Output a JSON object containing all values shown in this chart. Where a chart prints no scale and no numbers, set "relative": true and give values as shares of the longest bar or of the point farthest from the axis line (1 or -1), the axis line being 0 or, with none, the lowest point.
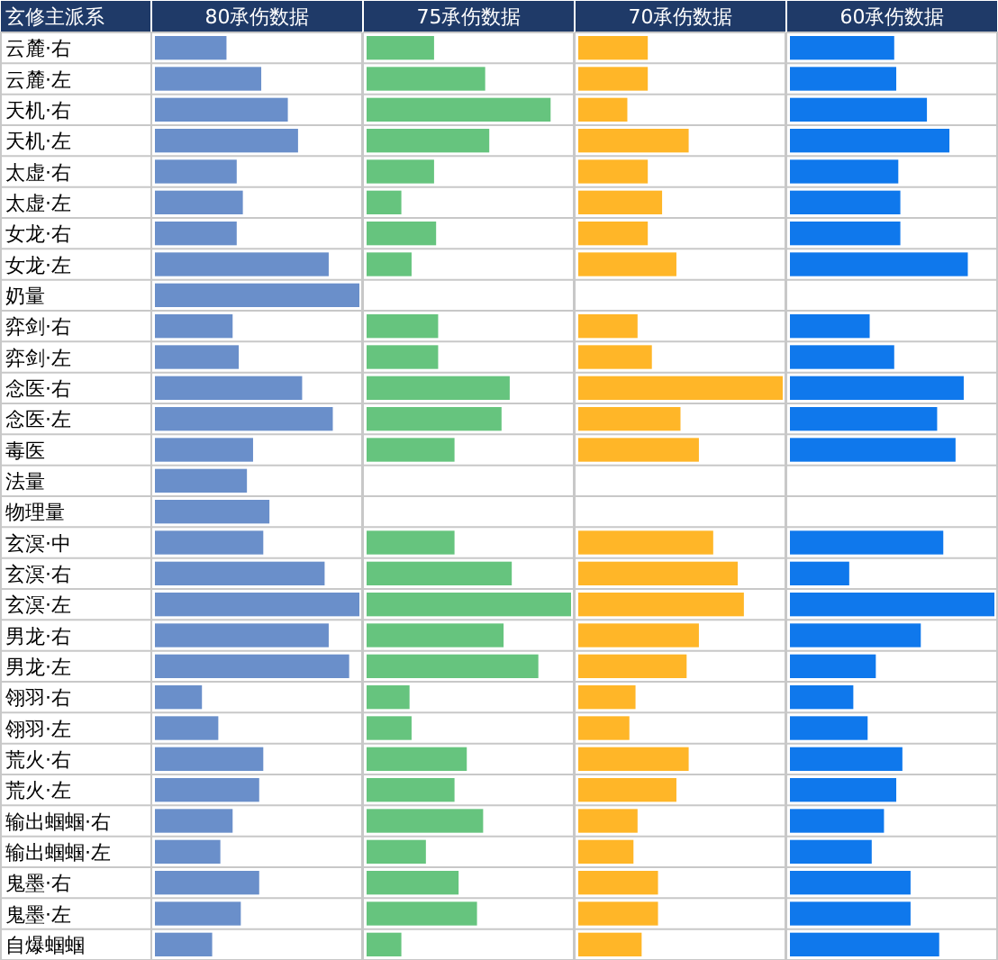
{
  "chart_data": [
    {
      "type": "bar",
      "orientation": "horizontal",
      "relative": true,
      "grid": true,
      "tick_labels": "y",
      "ylabel": "玄修主派系",
      "title": "80承伤数据",
      "color": "#6a8fca",
      "categories": [
        "云麓·右",
        "云麓·左",
        "天机·右",
        "天机·左",
        "太虚·右",
        "太虚·左",
        "女龙·右",
        "女龙·左",
        "奶量",
        "弈剑·右",
        "弈剑·左",
        "念医·右",
        "念医·左",
        "毒医",
        "法量",
        "物理量",
        "玄溟·中",
        "玄溟·右",
        "玄溟·左",
        "男龙·右",
        "男龙·左",
        "翎羽·右",
        "翎羽·左",
        "荒火·右",
        "荒火·左",
        "输出蝈蝈·右",
        "输出蝈蝈·左",
        "鬼墨·右",
        "鬼墨·左",
        "自爆蝈蝈"
      ],
      "values": [
        0.35,
        0.52,
        0.65,
        0.7,
        0.4,
        0.43,
        0.4,
        0.85,
        1,
        0.38,
        0.41,
        0.72,
        0.87,
        0.48,
        0.45,
        0.56,
        0.53,
        0.83,
        1,
        0.85,
        0.95,
        0.23,
        0.31,
        0.53,
        0.51,
        0.38,
        0.32,
        0.51,
        0.42,
        0.28
      ]
    },
    {
      "type": "bar",
      "orientation": "horizontal",
      "relative": true,
      "grid": true,
      "tick_labels": false,
      "title": "75承伤数据",
      "color": "#66c47e",
      "values": [
        0.33,
        0.58,
        0.9,
        0.6,
        0.33,
        0.17,
        0.34,
        0.22,
        null,
        0.35,
        0.35,
        0.7,
        0.66,
        0.43,
        null,
        null,
        0.43,
        0.71,
        1,
        0.67,
        0.84,
        0.21,
        0.22,
        0.49,
        0.43,
        0.57,
        0.29,
        0.45,
        0.54,
        0.17
      ]
    },
    {
      "type": "bar",
      "orientation": "horizontal",
      "relative": true,
      "grid": true,
      "tick_labels": false,
      "title": "70承伤数据",
      "color": "#ffb628",
      "values": [
        0.34,
        0.34,
        0.24,
        0.54,
        0.34,
        0.41,
        0.34,
        0.48,
        null,
        0.29,
        0.36,
        1,
        0.5,
        0.59,
        null,
        null,
        0.66,
        0.78,
        0.81,
        0.59,
        0.53,
        0.28,
        0.25,
        0.54,
        0.48,
        0.29,
        0.27,
        0.39,
        0.39,
        0.31
      ]
    },
    {
      "type": "bar",
      "orientation": "horizontal",
      "relative": true,
      "grid": true,
      "tick_labels": false,
      "title": "60承伤数据",
      "color": "#0f78ec",
      "values": [
        0.51,
        0.52,
        0.67,
        0.78,
        0.53,
        0.54,
        0.54,
        0.87,
        null,
        0.39,
        0.51,
        0.85,
        0.72,
        0.81,
        null,
        null,
        0.75,
        0.29,
        1,
        0.64,
        0.42,
        0.31,
        0.38,
        0.55,
        0.52,
        0.46,
        0.4,
        0.59,
        0.59,
        0.73
      ]
    }
  ]
}
